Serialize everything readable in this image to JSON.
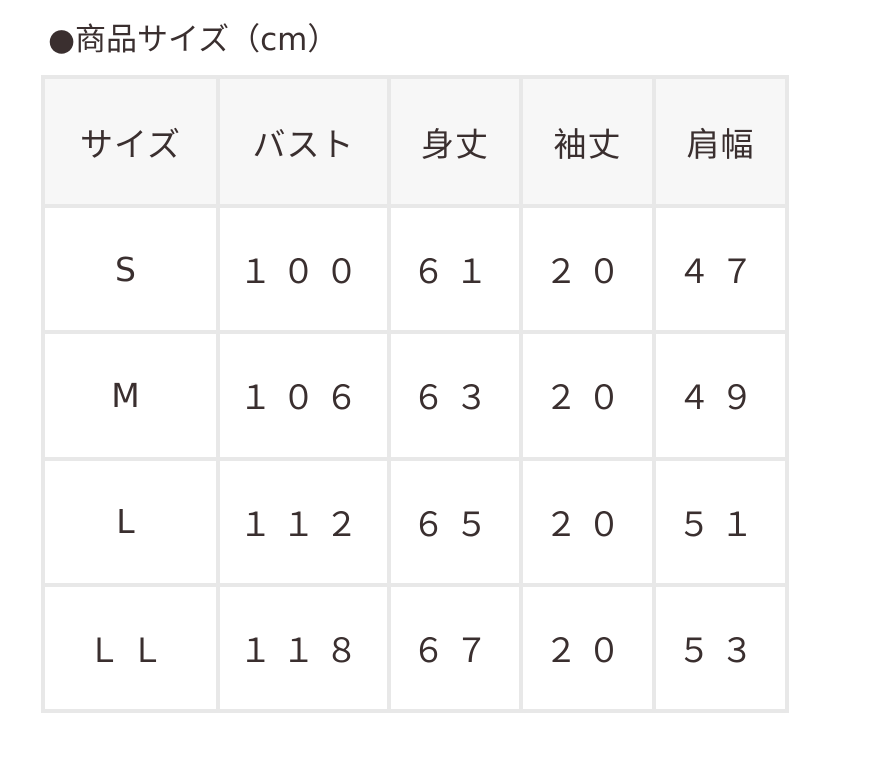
{
  "title": "●商品サイズ（cm）",
  "table": {
    "headers": [
      "サイズ",
      "バスト",
      "身丈",
      "袖丈",
      "肩幅"
    ],
    "rows": [
      [
        "S",
        "１００",
        "６１",
        "２０",
        "４７"
      ],
      [
        "M",
        "１０６",
        "６３",
        "２０",
        "４９"
      ],
      [
        "L",
        "１１２",
        "６５",
        "２０",
        "５１"
      ],
      [
        "ＬＬ",
        "１１８",
        "６７",
        "２０",
        "５３"
      ]
    ]
  }
}
